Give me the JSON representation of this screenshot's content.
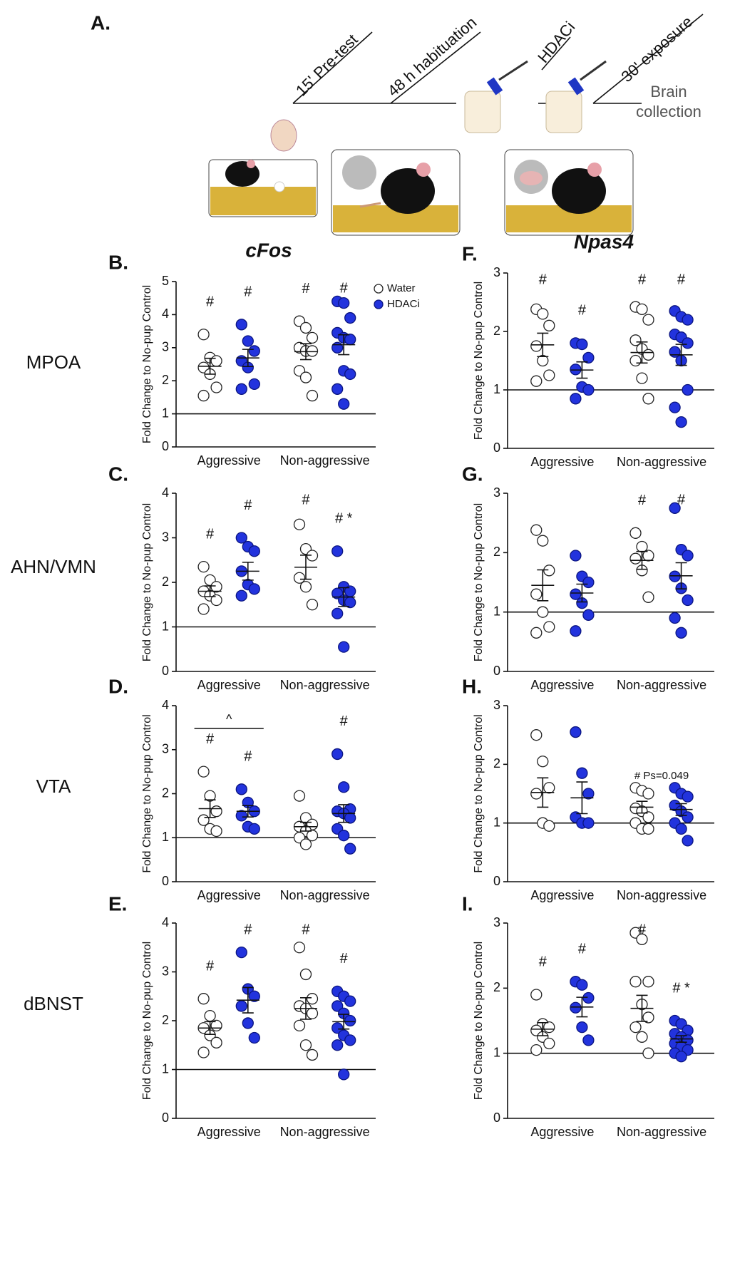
{
  "panel_a": {
    "label": "A.",
    "steps": [
      "15' Pre-test",
      "48 h habituation",
      "HDACi",
      "30' exposure"
    ],
    "end": [
      "Brain",
      "collection"
    ]
  },
  "row_labels": [
    "MPOA",
    "AHN/VMN",
    "VTA",
    "dBNST"
  ],
  "chart_data": [
    {
      "type": "dot",
      "panel": "B.",
      "title": "cFos",
      "y_label": "Fold Change to No-pup Control",
      "categories": [
        "Aggressive",
        "Non-aggressive"
      ],
      "ylim": [
        0,
        5
      ],
      "yticks": [
        0,
        1,
        2,
        3,
        4,
        5
      ],
      "reference_line": 1,
      "legend": "upper right",
      "series": [
        {
          "name": "Water",
          "color": "#ffffff",
          "values": [
            [
              3.4,
              2.7,
              2.6,
              2.4,
              2.2,
              1.8,
              1.55
            ],
            [
              3.8,
              3.6,
              3.3,
              3.0,
              2.9,
              2.9,
              2.3,
              2.1,
              1.55
            ]
          ],
          "means": [
            2.44,
            2.88
          ],
          "sems": [
            0.24,
            0.24
          ],
          "markers": [
            "#",
            "#"
          ]
        },
        {
          "name": "HDACi",
          "color": "#2233dd",
          "values": [
            [
              3.7,
              3.2,
              2.9,
              2.6,
              2.4,
              1.9,
              1.75
            ],
            [
              4.4,
              4.35,
              3.9,
              3.45,
              3.3,
              3.25,
              3.0,
              2.3,
              2.2,
              1.75,
              1.3
            ]
          ],
          "means": [
            2.69,
            3.09
          ],
          "sems": [
            0.26,
            0.3
          ],
          "markers": [
            "#",
            "#"
          ]
        }
      ]
    },
    {
      "type": "dot",
      "panel": "C.",
      "y_label": "Fold Change to No-pup Control",
      "categories": [
        "Aggressive",
        "Non-aggressive"
      ],
      "ylim": [
        0,
        4
      ],
      "yticks": [
        0,
        1,
        2,
        3,
        4
      ],
      "reference_line": 1,
      "series": [
        {
          "color": "#ffffff",
          "values": [
            [
              2.35,
              2.05,
              1.9,
              1.8,
              1.7,
              1.6,
              1.4
            ],
            [
              3.3,
              2.75,
              2.6,
              2.1,
              1.9,
              1.5
            ]
          ],
          "means": [
            1.8,
            2.34
          ],
          "sems": [
            0.12,
            0.27
          ],
          "markers": [
            "#",
            "#"
          ]
        },
        {
          "color": "#2233dd",
          "values": [
            [
              3.0,
              2.8,
              2.7,
              2.25,
              1.95,
              1.85,
              1.7
            ],
            [
              2.7,
              1.9,
              1.8,
              1.75,
              1.6,
              1.55,
              1.3,
              0.55
            ]
          ],
          "means": [
            2.25,
            1.67
          ],
          "sems": [
            0.2,
            0.21
          ],
          "markers": [
            "#",
            "# *"
          ]
        }
      ]
    },
    {
      "type": "dot",
      "panel": "D.",
      "y_label": "Fold Change to No-pup Control",
      "categories": [
        "Aggressive",
        "Non-aggressive"
      ],
      "ylim": [
        0,
        4
      ],
      "yticks": [
        0,
        1,
        2,
        3,
        4
      ],
      "reference_line": 1,
      "group_annotations": [
        "^",
        null
      ],
      "series": [
        {
          "color": "#ffffff",
          "values": [
            [
              2.5,
              1.95,
              1.6,
              1.4,
              1.2,
              1.15
            ],
            [
              1.95,
              1.45,
              1.3,
              1.25,
              1.15,
              1.05,
              1.0,
              0.85
            ]
          ],
          "means": [
            1.66,
            1.25
          ],
          "sems": [
            0.2,
            0.1
          ],
          "markers": [
            "#",
            null
          ]
        },
        {
          "color": "#2233dd",
          "values": [
            [
              2.1,
              1.8,
              1.6,
              1.5,
              1.25,
              1.2
            ],
            [
              2.9,
              2.15,
              1.65,
              1.6,
              1.55,
              1.45,
              1.2,
              1.05,
              0.75
            ]
          ],
          "means": [
            1.6,
            1.55
          ],
          "sems": [
            0.13,
            0.2
          ],
          "markers": [
            "#",
            "#"
          ]
        }
      ]
    },
    {
      "type": "dot",
      "panel": "E.",
      "y_label": "Fold Change to No-pup Control",
      "categories": [
        "Aggressive",
        "Non-aggressive"
      ],
      "ylim": [
        0,
        4
      ],
      "yticks": [
        0,
        1,
        2,
        3,
        4
      ],
      "reference_line": 1,
      "series": [
        {
          "color": "#ffffff",
          "values": [
            [
              2.45,
              2.1,
              1.9,
              1.85,
              1.7,
              1.55,
              1.35
            ],
            [
              3.5,
              2.95,
              2.45,
              2.3,
              2.25,
              2.15,
              1.9,
              1.5,
              1.3
            ]
          ],
          "means": [
            1.85,
            2.25
          ],
          "sems": [
            0.13,
            0.22
          ],
          "markers": [
            "#",
            "#"
          ]
        },
        {
          "color": "#2233dd",
          "values": [
            [
              3.4,
              2.65,
              2.5,
              2.3,
              1.95,
              1.65
            ],
            [
              2.6,
              2.5,
              2.4,
              2.3,
              2.15,
              2.0,
              1.85,
              1.7,
              1.6,
              1.5,
              0.9
            ]
          ],
          "means": [
            2.42,
            1.98
          ],
          "sems": [
            0.26,
            0.15
          ],
          "markers": [
            "#",
            "#"
          ]
        }
      ]
    },
    {
      "type": "dot",
      "panel": "F.",
      "title": "Npas4",
      "y_label": "Fold Change to No-pup Control",
      "categories": [
        "Aggressive",
        "Non-aggressive"
      ],
      "ylim": [
        0,
        3
      ],
      "yticks": [
        0,
        1,
        2,
        3
      ],
      "reference_line": 1,
      "series": [
        {
          "color": "#ffffff",
          "values": [
            [
              2.38,
              2.3,
              2.1,
              1.75,
              1.5,
              1.25,
              1.15
            ],
            [
              2.42,
              2.38,
              2.2,
              1.85,
              1.7,
              1.6,
              1.5,
              1.2,
              0.85
            ]
          ],
          "means": [
            1.77,
            1.64
          ],
          "sems": [
            0.2,
            0.18
          ],
          "markers": [
            "#",
            "#"
          ]
        },
        {
          "color": "#2233dd",
          "values": [
            [
              1.8,
              1.78,
              1.55,
              1.35,
              1.05,
              1.0,
              0.85
            ],
            [
              2.35,
              2.25,
              2.2,
              1.95,
              1.9,
              1.8,
              1.65,
              1.5,
              1.0,
              0.7,
              0.45
            ]
          ],
          "means": [
            1.34,
            1.6
          ],
          "sems": [
            0.14,
            0.18
          ],
          "markers": [
            "#",
            "#"
          ]
        }
      ]
    },
    {
      "type": "dot",
      "panel": "G.",
      "y_label": "Fold Change to No-pup Control",
      "categories": [
        "Aggressive",
        "Non-aggressive"
      ],
      "ylim": [
        0,
        3
      ],
      "yticks": [
        0,
        1,
        2,
        3
      ],
      "reference_line": 1,
      "series": [
        {
          "color": "#ffffff",
          "values": [
            [
              2.38,
              2.2,
              1.7,
              1.3,
              1.0,
              0.75,
              0.65
            ],
            [
              2.33,
              2.1,
              1.95,
              1.9,
              1.7,
              1.25
            ]
          ],
          "means": [
            1.45,
            1.87
          ],
          "sems": [
            0.26,
            0.15
          ],
          "markers": [
            null,
            "#"
          ]
        },
        {
          "color": "#2233dd",
          "values": [
            [
              1.95,
              1.6,
              1.5,
              1.3,
              1.15,
              0.95,
              0.68
            ],
            [
              2.75,
              2.05,
              1.95,
              1.6,
              1.4,
              1.2,
              0.9,
              0.65
            ]
          ],
          "means": [
            1.32,
            1.61
          ],
          "sems": [
            0.15,
            0.22
          ],
          "markers": [
            null,
            "#"
          ]
        }
      ]
    },
    {
      "type": "dot",
      "panel": "H.",
      "y_label": "Fold Change to No-pup Control",
      "categories": [
        "Aggressive",
        "Non-aggressive"
      ],
      "ylim": [
        0,
        3
      ],
      "yticks": [
        0,
        1,
        2,
        3
      ],
      "reference_line": 1,
      "group_annotations": [
        null,
        "# Ps=0.049"
      ],
      "series": [
        {
          "color": "#ffffff",
          "values": [
            [
              2.5,
              2.05,
              1.6,
              1.5,
              1.0,
              0.95
            ],
            [
              1.6,
              1.55,
              1.5,
              1.25,
              1.2,
              1.1,
              1.0,
              0.9,
              0.9
            ]
          ],
          "means": [
            1.52,
            1.27
          ],
          "sems": [
            0.25,
            0.1
          ],
          "markers": [
            null,
            null
          ]
        },
        {
          "color": "#2233dd",
          "values": [
            [
              2.55,
              1.85,
              1.5,
              1.1,
              1.0,
              1.0
            ],
            [
              1.6,
              1.5,
              1.45,
              1.3,
              1.2,
              1.1,
              1.0,
              0.9,
              0.7
            ]
          ],
          "means": [
            1.43,
            1.23
          ],
          "sems": [
            0.27,
            0.1
          ],
          "markers": [
            null,
            null
          ]
        }
      ]
    },
    {
      "type": "dot",
      "panel": "I.",
      "y_label": "Fold Change to No-pup Control",
      "categories": [
        "Aggressive",
        "Non-aggressive"
      ],
      "ylim": [
        0,
        3
      ],
      "yticks": [
        0,
        1,
        2,
        3
      ],
      "reference_line": 1,
      "series": [
        {
          "color": "#ffffff",
          "values": [
            [
              1.9,
              1.45,
              1.4,
              1.35,
              1.25,
              1.15,
              1.05
            ],
            [
              2.85,
              2.75,
              2.1,
              2.1,
              1.75,
              1.55,
              1.4,
              1.25,
              1.0
            ]
          ],
          "means": [
            1.37,
            1.69
          ],
          "sems": [
            0.1,
            0.2
          ],
          "markers": [
            "#",
            "#"
          ]
        },
        {
          "color": "#2233dd",
          "values": [
            [
              2.1,
              2.05,
              1.85,
              1.7,
              1.4,
              1.2
            ],
            [
              1.5,
              1.45,
              1.35,
              1.3,
              1.25,
              1.2,
              1.15,
              1.1,
              1.05,
              1.0,
              0.95
            ]
          ],
          "means": [
            1.71,
            1.22
          ],
          "sems": [
            0.15,
            0.05
          ],
          "markers": [
            "#",
            "# *"
          ]
        }
      ]
    }
  ]
}
